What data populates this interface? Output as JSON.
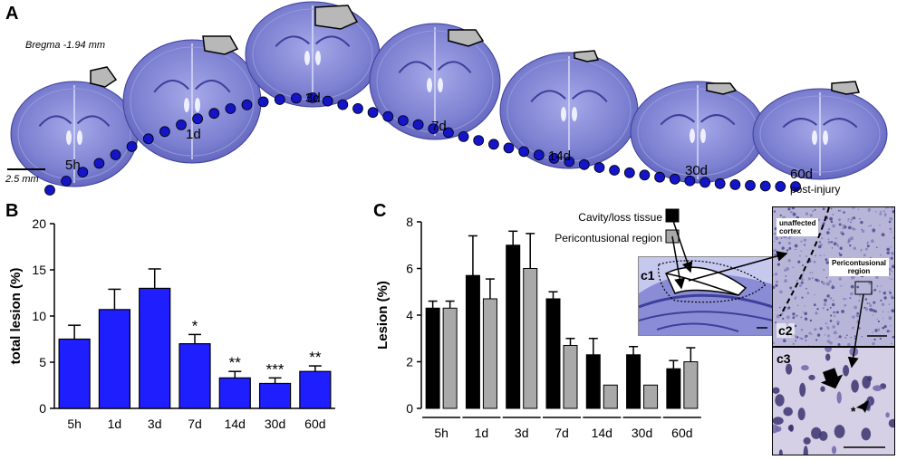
{
  "panel_a": {
    "letter": "A",
    "bregma": "Bregma -1.94 mm",
    "scale_bar": "2.5 mm",
    "post_injury": "post-injury",
    "timepoints": [
      "5h",
      "1d",
      "3d",
      "7d",
      "14d",
      "30d",
      "60d"
    ],
    "colors": {
      "brain": "#7b7fd0",
      "brain_dark": "#3d3f9a",
      "lesion": "#b8b8b8",
      "dot": "#1414c8"
    }
  },
  "panel_b": {
    "letter": "B",
    "chart_data": {
      "type": "bar",
      "categories": [
        "5h",
        "1d",
        "3d",
        "7d",
        "14d",
        "30d",
        "60d"
      ],
      "values": [
        7.5,
        10.7,
        13.0,
        7.0,
        3.3,
        2.7,
        4.0
      ],
      "errors": [
        1.5,
        2.2,
        2.1,
        1.0,
        0.7,
        0.6,
        0.6
      ],
      "significance": [
        "",
        "",
        "",
        "*",
        "**",
        "***",
        "**"
      ],
      "ylabel": "total lesion (%)",
      "yticks": [
        0,
        5,
        10,
        15,
        20
      ],
      "ylim": [
        0,
        20
      ],
      "color": "#1e1eff"
    }
  },
  "panel_c": {
    "letter": "C",
    "chart_data": {
      "type": "bar",
      "categories": [
        "5h",
        "1d",
        "3d",
        "7d",
        "14d",
        "30d",
        "60d"
      ],
      "series": [
        {
          "name": "Cavity/loss tissue",
          "color": "#000000",
          "values": [
            4.3,
            5.7,
            7.0,
            4.7,
            2.3,
            2.3,
            1.7
          ],
          "errors": [
            0.3,
            1.7,
            0.6,
            0.3,
            0.7,
            0.35,
            0.35
          ]
        },
        {
          "name": "Pericontusional region",
          "color": "#a9a9a9",
          "values": [
            4.3,
            4.7,
            6.0,
            2.7,
            1.0,
            1.0,
            2.0
          ],
          "errors": [
            0.3,
            0.85,
            1.5,
            0.3,
            0,
            0,
            0.6
          ]
        }
      ],
      "ylabel": "Lesion (%)",
      "yticks": [
        0,
        2,
        4,
        6,
        8
      ],
      "ylim": [
        0,
        8
      ]
    },
    "insets": {
      "c1": "c1",
      "c2": "c2",
      "c3": "c3",
      "unaffected": [
        "unaffected",
        "cortex"
      ],
      "pericontusional": [
        "Pericontusional",
        "region"
      ],
      "asterisk": "*"
    }
  }
}
